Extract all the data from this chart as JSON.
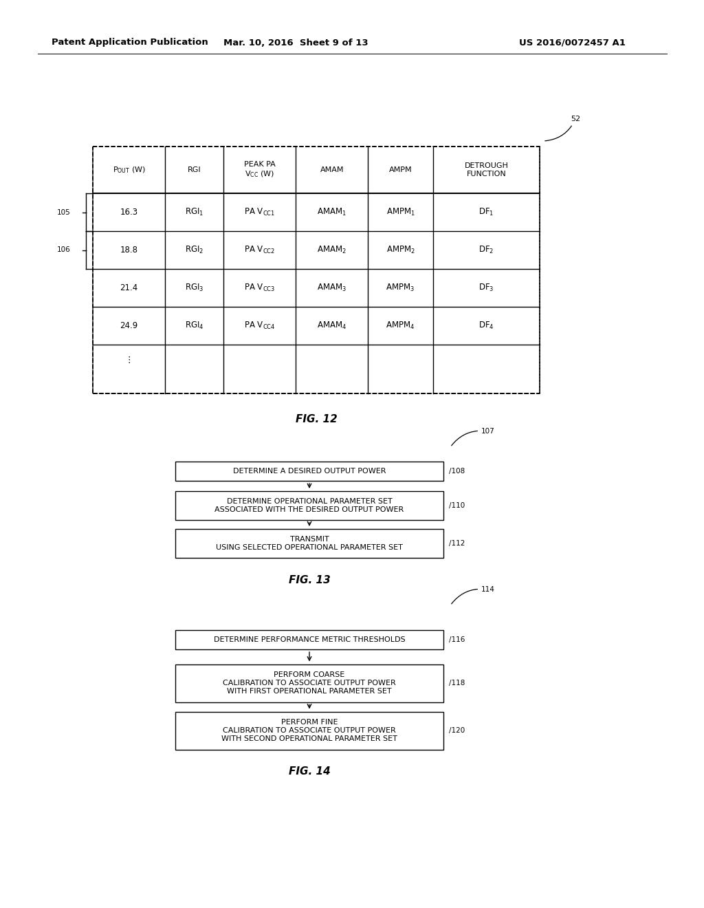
{
  "bg_color": "#ffffff",
  "header_text": "Patent Application Publication",
  "header_date": "Mar. 10, 2016  Sheet 9 of 13",
  "header_patent": "US 2016/0072457 A1",
  "fig12_label": "FIG. 12",
  "fig13_label": "FIG. 13",
  "fig14_label": "FIG. 14",
  "fig13_box1": "DETERMINE A DESIRED OUTPUT POWER",
  "fig13_box2": "DETERMINE OPERATIONAL PARAMETER SET\nASSOCIATED WITH THE DESIRED OUTPUT POWER",
  "fig13_box3": "TRANSMIT\nUSING SELECTED OPERATIONAL PARAMETER SET",
  "fig14_box1": "DETERMINE PERFORMANCE METRIC THRESHOLDS",
  "fig14_box2": "PERFORM COARSE\nCALIBRATION TO ASSOCIATE OUTPUT POWER\nWITH FIRST OPERATIONAL PARAMETER SET",
  "fig14_box3": "PERFORM FINE\nCALIBRATION TO ASSOCIATE OUTPUT POWER\nWITH SECOND OPERATIONAL PARAMETER SET"
}
